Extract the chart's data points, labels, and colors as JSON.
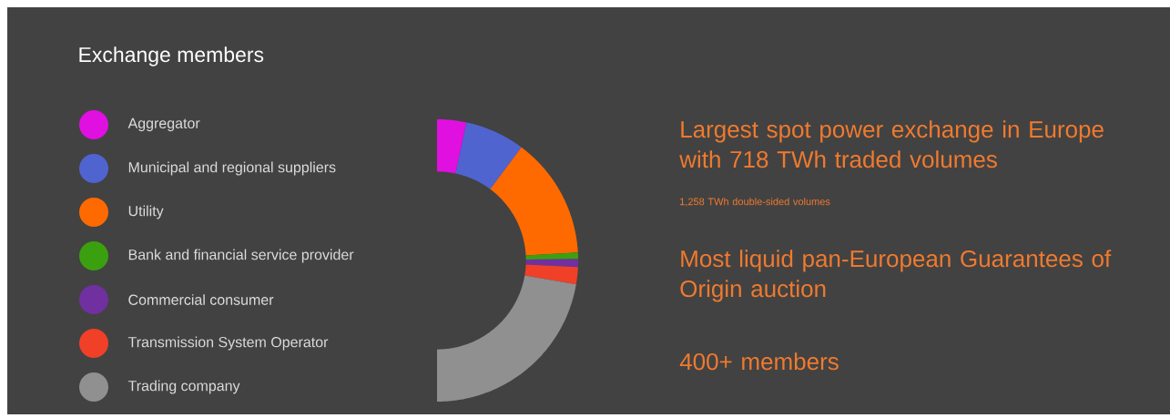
{
  "chart_data": {
    "type": "donut",
    "title": "Exchange members",
    "categories": [
      "Aggregator",
      "Municipal and regional suppliers",
      "Utility",
      "Bank and financial service provider",
      "Commercial consumer",
      "Transmission System Operator",
      "Trading company"
    ],
    "values": [
      6.7,
      13.7,
      27.8,
      1.5,
      1.8,
      3.9,
      44.6
    ],
    "colors": [
      "#e010e0",
      "#5064d0",
      "#ff6a00",
      "#3aa010",
      "#7030a0",
      "#f04028",
      "#909090"
    ],
    "legend": "left",
    "annotations": [
      "Largest spot power exchange in Europe with 718 TWh traded volumes",
      "1,258 TWh double-sided volumes",
      "Most liquid pan-European Guarantees of Origin auction",
      "400+ members"
    ]
  }
}
